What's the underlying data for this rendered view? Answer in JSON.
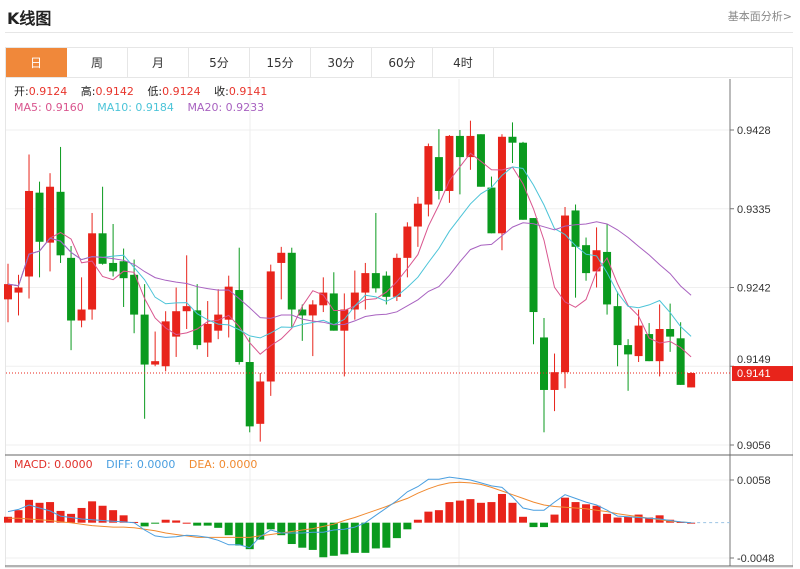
{
  "header": {
    "title": "K线图",
    "link": "基本面分析>"
  },
  "tabs": [
    {
      "label": "日",
      "active": true
    },
    {
      "label": "周"
    },
    {
      "label": "月"
    },
    {
      "label": "5分"
    },
    {
      "label": "15分"
    },
    {
      "label": "30分"
    },
    {
      "label": "60分"
    },
    {
      "label": "4时"
    }
  ],
  "ohlc_legend": {
    "open_label": "开:",
    "open": "0.9124",
    "high_label": "高:",
    "high": "0.9142",
    "low_label": "低:",
    "low": "0.9124",
    "close_label": "收:",
    "close": "0.9141"
  },
  "ma_legend": {
    "ma5": "MA5: 0.9160",
    "ma10": "MA10: 0.9184",
    "ma20": "MA20: 0.9233"
  },
  "macd_legend": {
    "macd": "MACD: 0.0000",
    "diff": "DIFF: 0.0000",
    "dea": "DEA: 0.0000"
  },
  "colors": {
    "up": "#e8241b",
    "down": "#0a9a1e",
    "ma5": "#d9558e",
    "ma10": "#4cc4d8",
    "ma20": "#a862c0",
    "diff": "#4a9fe0",
    "dea": "#f08a30",
    "accent": "#f0883a"
  },
  "chart_data": [
    {
      "type": "candlestick",
      "y_ticks": [
        "0.9428",
        "0.9335",
        "0.9242",
        "0.9149",
        "0.9056"
      ],
      "ylim": [
        0.9056,
        0.9428
      ],
      "last_price": "0.9141",
      "grid": true,
      "columns": [
        "open",
        "high",
        "low",
        "close"
      ],
      "candles": [
        [
          0.9228,
          0.927,
          0.9201,
          0.9246
        ],
        [
          0.9236,
          0.9257,
          0.9209,
          0.9242
        ],
        [
          0.9255,
          0.9399,
          0.9229,
          0.9356
        ],
        [
          0.9354,
          0.9367,
          0.9254,
          0.9296
        ],
        [
          0.9295,
          0.9377,
          0.9261,
          0.9361
        ],
        [
          0.9355,
          0.9408,
          0.9271,
          0.928
        ],
        [
          0.9277,
          0.9291,
          0.9168,
          0.9203
        ],
        [
          0.9203,
          0.9254,
          0.9195,
          0.9216
        ],
        [
          0.9216,
          0.933,
          0.9204,
          0.9306
        ],
        [
          0.9306,
          0.9361,
          0.9269,
          0.927
        ],
        [
          0.9271,
          0.9317,
          0.9255,
          0.9261
        ],
        [
          0.9273,
          0.9288,
          0.9219,
          0.9253
        ],
        [
          0.9257,
          0.9275,
          0.9188,
          0.921
        ],
        [
          0.921,
          0.9246,
          0.9087,
          0.9151
        ],
        [
          0.9151,
          0.919,
          0.9149,
          0.9155
        ],
        [
          0.9149,
          0.9214,
          0.9143,
          0.9202
        ],
        [
          0.9184,
          0.9242,
          0.916,
          0.9214
        ],
        [
          0.9214,
          0.928,
          0.9193,
          0.922
        ],
        [
          0.9215,
          0.9246,
          0.9169,
          0.9174
        ],
        [
          0.9177,
          0.9226,
          0.916,
          0.9199
        ],
        [
          0.9191,
          0.924,
          0.9181,
          0.921
        ],
        [
          0.9204,
          0.9256,
          0.9183,
          0.9243
        ],
        [
          0.9239,
          0.9289,
          0.9151,
          0.9154
        ],
        [
          0.9154,
          0.9183,
          0.9071,
          0.9078
        ],
        [
          0.9081,
          0.9141,
          0.906,
          0.9131
        ],
        [
          0.9131,
          0.9269,
          0.9114,
          0.9261
        ],
        [
          0.9271,
          0.929,
          0.9228,
          0.9283
        ],
        [
          0.9283,
          0.9289,
          0.9195,
          0.9216
        ],
        [
          0.9216,
          0.9222,
          0.9179,
          0.9209
        ],
        [
          0.9209,
          0.9227,
          0.9161,
          0.9222
        ],
        [
          0.9221,
          0.9254,
          0.9213,
          0.9236
        ],
        [
          0.9235,
          0.926,
          0.9191,
          0.9191
        ],
        [
          0.9191,
          0.9235,
          0.9137,
          0.9216
        ],
        [
          0.9216,
          0.9262,
          0.9204,
          0.9236
        ],
        [
          0.9236,
          0.9271,
          0.9216,
          0.9259
        ],
        [
          0.9259,
          0.933,
          0.9236,
          0.9241
        ],
        [
          0.9256,
          0.9261,
          0.9222,
          0.9231
        ],
        [
          0.9231,
          0.9282,
          0.9226,
          0.9277
        ],
        [
          0.9277,
          0.9319,
          0.9254,
          0.9314
        ],
        [
          0.9314,
          0.9349,
          0.929,
          0.9341
        ],
        [
          0.934,
          0.9412,
          0.9326,
          0.9409
        ],
        [
          0.9396,
          0.9429,
          0.9346,
          0.9356
        ],
        [
          0.9356,
          0.9422,
          0.9342,
          0.9421
        ],
        [
          0.9421,
          0.9428,
          0.9352,
          0.9396
        ],
        [
          0.9396,
          0.9439,
          0.9381,
          0.9421
        ],
        [
          0.9423,
          0.9423,
          0.9361,
          0.9361
        ],
        [
          0.936,
          0.9373,
          0.9306,
          0.9306
        ],
        [
          0.9306,
          0.9423,
          0.9286,
          0.942
        ],
        [
          0.942,
          0.9437,
          0.9389,
          0.9413
        ],
        [
          0.9413,
          0.9414,
          0.9322,
          0.9322
        ],
        [
          0.9324,
          0.9324,
          0.9175,
          0.9213
        ],
        [
          0.9183,
          0.9206,
          0.9071,
          0.9121
        ],
        [
          0.9121,
          0.9164,
          0.9096,
          0.9142
        ],
        [
          0.9142,
          0.9337,
          0.9123,
          0.9327
        ],
        [
          0.9333,
          0.934,
          0.923,
          0.929
        ],
        [
          0.9292,
          0.9301,
          0.925,
          0.9259
        ],
        [
          0.9261,
          0.9313,
          0.9242,
          0.9286
        ],
        [
          0.9284,
          0.9317,
          0.921,
          0.9222
        ],
        [
          0.922,
          0.9237,
          0.9149,
          0.9174
        ],
        [
          0.9174,
          0.9181,
          0.912,
          0.9163
        ],
        [
          0.9161,
          0.9216,
          0.9154,
          0.9197
        ],
        [
          0.9187,
          0.92,
          0.9155,
          0.9155
        ],
        [
          0.9155,
          0.9222,
          0.9137,
          0.9193
        ],
        [
          0.9193,
          0.9223,
          0.9166,
          0.9184
        ],
        [
          0.9182,
          0.9201,
          0.9127,
          0.9127
        ],
        [
          0.9124,
          0.9142,
          0.9124,
          0.9141
        ]
      ],
      "moving_averages": [
        5,
        10,
        20
      ]
    },
    {
      "type": "macd",
      "y_ticks": [
        "0.0058",
        "-0.0048"
      ],
      "ylim": [
        -0.0048,
        0.0058
      ],
      "macd": [
        0.0008,
        0.0017,
        0.0031,
        0.0027,
        0.0028,
        0.0016,
        0.0012,
        0.002,
        0.0029,
        0.0023,
        0.0017,
        0.001,
        0.0001,
        -0.0005,
        -0.0001,
        0.0004,
        0.0003,
        0.0,
        -0.0004,
        -0.0004,
        -0.0007,
        -0.0017,
        -0.0031,
        -0.0036,
        -0.0023,
        -0.0009,
        -0.0017,
        -0.0029,
        -0.0034,
        -0.0037,
        -0.0047,
        -0.0045,
        -0.0043,
        -0.0041,
        -0.0041,
        -0.0035,
        -0.0034,
        -0.0021,
        -0.0009,
        0.0004,
        0.0015,
        0.0017,
        0.0028,
        0.003,
        0.0032,
        0.0027,
        0.0028,
        0.0039,
        0.0027,
        0.0008,
        -0.0006,
        -0.0006,
        0.0011,
        0.0034,
        0.0028,
        0.0025,
        0.0023,
        0.0012,
        0.0007,
        0.0008,
        0.0011,
        0.0007,
        0.001,
        0.0004,
        0.0001,
        0.0
      ],
      "diff": [
        0.0015,
        0.0018,
        0.0024,
        0.002,
        0.0016,
        0.0009,
        0.0007,
        0.0005,
        0.0004,
        0.0003,
        0.0002,
        0.0001,
        0.0,
        -0.001,
        -0.0018,
        -0.002,
        -0.0019,
        -0.0017,
        -0.0018,
        -0.002,
        -0.0024,
        -0.003,
        -0.003,
        -0.0034,
        -0.0019,
        -0.001,
        -0.0014,
        -0.0014,
        -0.0014,
        -0.0013,
        -0.0013,
        -0.001,
        -0.0009,
        -0.0006,
        0.0,
        0.001,
        0.002,
        0.003,
        0.0042,
        0.0049,
        0.0059,
        0.0059,
        0.0062,
        0.006,
        0.0058,
        0.0054,
        0.005,
        0.0048,
        0.0035,
        0.002,
        0.0017,
        0.0017,
        0.0028,
        0.0038,
        0.0033,
        0.0028,
        0.0024,
        0.0017,
        0.0009,
        0.0008,
        0.0007,
        0.0006,
        0.0005,
        0.0003,
        0.0001,
        0.0
      ],
      "dea": [
        0.0006,
        0.0006,
        0.0005,
        0.0004,
        0.0003,
        0.0001,
        0.0,
        -0.0002,
        -0.0004,
        -0.0005,
        -0.0006,
        -0.0006,
        -0.0007,
        -0.0009,
        -0.0011,
        -0.0014,
        -0.0016,
        -0.0018,
        -0.002,
        -0.002,
        -0.002,
        -0.002,
        -0.002,
        -0.002,
        -0.0018,
        -0.0016,
        -0.0014,
        -0.0012,
        -0.001,
        -0.0008,
        -0.0005,
        -0.0002,
        0.0003,
        0.0007,
        0.0012,
        0.0017,
        0.0022,
        0.0028,
        0.0033,
        0.004,
        0.0046,
        0.0051,
        0.0054,
        0.0055,
        0.0054,
        0.0052,
        0.0048,
        0.0043,
        0.0038,
        0.0033,
        0.0028,
        0.0024,
        0.0022,
        0.0021,
        0.002,
        0.0019,
        0.0017,
        0.0015,
        0.0012,
        0.001,
        0.0008,
        0.0006,
        0.0004,
        0.0002,
        0.0001,
        0.0
      ]
    }
  ]
}
